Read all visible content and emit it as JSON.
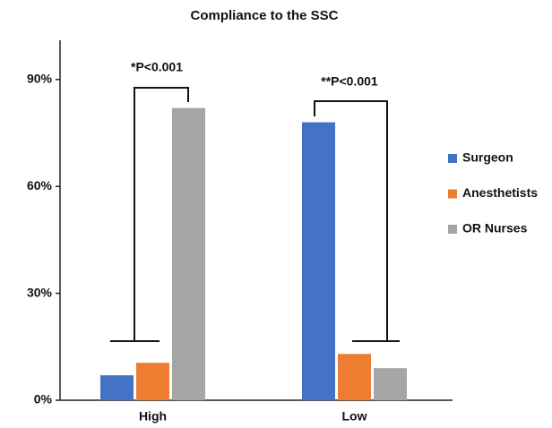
{
  "chart_data": {
    "type": "bar",
    "title": "Compliance to the SSC",
    "categories": [
      "High",
      "Low"
    ],
    "series": [
      {
        "name": "Surgeon",
        "color": "#4472c4",
        "values": [
          7,
          78
        ]
      },
      {
        "name": "Anesthetists",
        "color": "#ed7d31",
        "values": [
          10.5,
          13
        ]
      },
      {
        "name": "OR Nurses",
        "color": "#a5a5a5",
        "values": [
          82,
          9
        ]
      }
    ],
    "ylim": [
      0,
      101
    ],
    "yticks": [
      {
        "value": 0,
        "label": "0%"
      },
      {
        "value": 30,
        "label": "30%"
      },
      {
        "value": 60,
        "label": "60%"
      },
      {
        "value": 90,
        "label": "90%"
      }
    ],
    "annotations": [
      "*P<0.001",
      "**P<0.001"
    ],
    "legend": "right",
    "grid": false
  }
}
